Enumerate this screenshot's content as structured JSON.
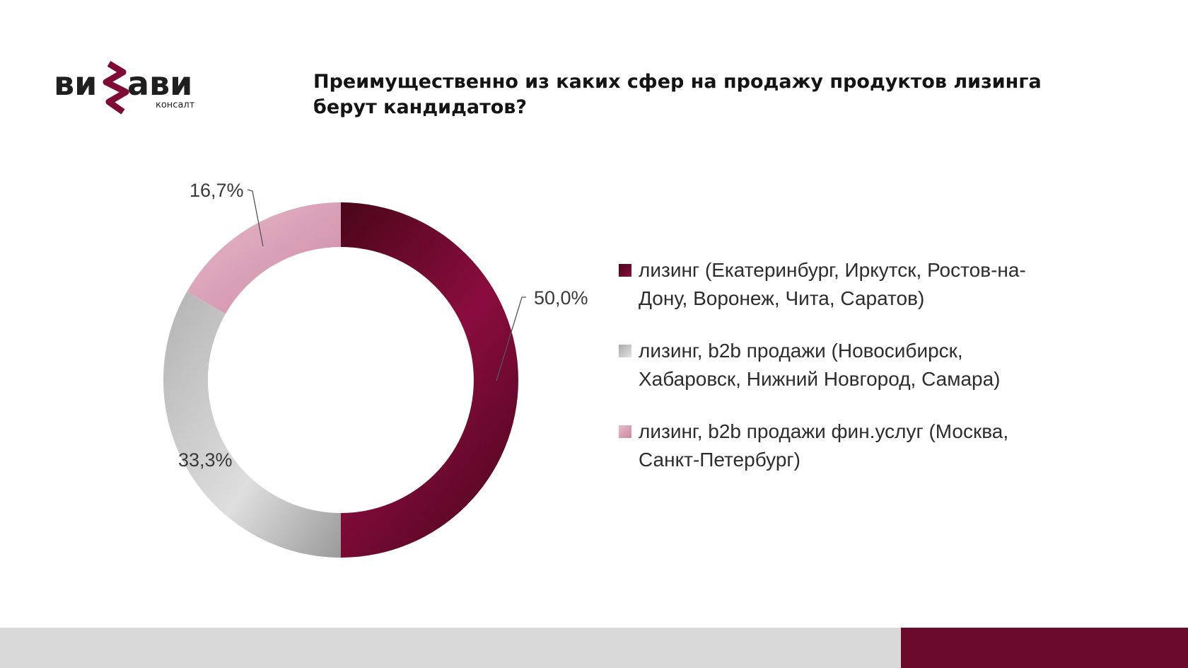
{
  "logo": {
    "text_left": "ви",
    "text_right": "ави",
    "subtitle": "консалт",
    "color": "#6b0a2c"
  },
  "title": "Преимущественно из каких сфер на продажу продуктов лизинга\nберут кандидатов?",
  "chart_data": {
    "type": "pie",
    "donut": true,
    "title": "Преимущественно из каких сфер на продажу продуктов лизинга берут кандидатов?",
    "categories": [
      "лизинг (Екатеринбург, Иркутск, Ростов-на-Дону, Воронеж, Чита, Саратов)",
      "лизинг, b2b продажи (Новосибирск, Хабаровск, Нижний Новгород, Самара)",
      "лизинг, b2b продажи фин.услуг (Москва, Санкт-Петербург)"
    ],
    "values": [
      50.0,
      33.3,
      16.7
    ],
    "labels": [
      "50,0%",
      "33,3%",
      "16,7%"
    ],
    "legend_position": "right",
    "colors": [
      "#7d0b36",
      "#c4c4c4",
      "#e4a9c0"
    ]
  },
  "legend_display": [
    "лизинг (Екатеринбург, Иркутск, Ростов-на-\nДону, Воронеж, Чита, Саратов)",
    "лизинг, b2b продажи (Новосибирск,\nХабаровск, Нижний Новгород, Самара)",
    "лизинг, b2b продажи фин.услуг (Москва,\nСанкт-Петербург)"
  ],
  "footer": {
    "gray": "#d9d9d9",
    "brand": "#6b0a2c"
  }
}
